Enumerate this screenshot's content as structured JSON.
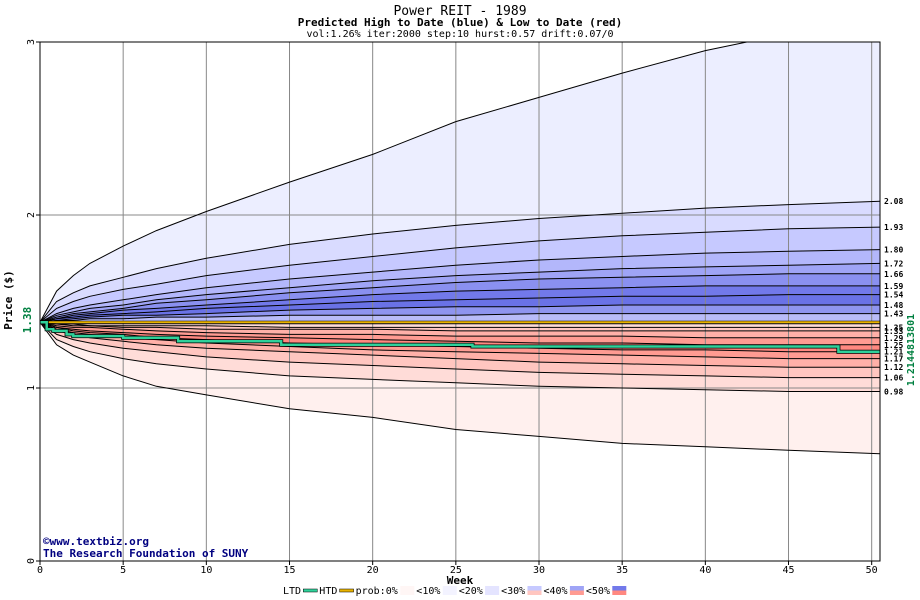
{
  "chart_data": {
    "type": "area",
    "title": "Power REIT - 1989",
    "subtitle": "Predicted High to Date (blue) &  Low to Date (red)",
    "params": "vol:1.26% iter:2000 step:10 hurst:0.57 drift:0.07/0",
    "xlabel": "Week",
    "ylabel": "Price ($)",
    "xlim": [
      0,
      50.5
    ],
    "ylim": [
      0,
      3
    ],
    "x_ticks": [
      "0",
      "5",
      "10",
      "15",
      "20",
      "25",
      "30",
      "35",
      "40",
      "45",
      "50"
    ],
    "y_ticks": [
      "0",
      "1",
      "2",
      "3"
    ],
    "current_price_label": "1.38",
    "current_price": 1.38,
    "last_price_label": "1.2144813801",
    "credit_line1": "©www.textbiz.org",
    "credit_line2": "The Research Foundation of SUNY",
    "x": [
      0,
      1,
      2,
      3,
      5,
      7,
      10,
      15,
      20,
      25,
      30,
      35,
      40,
      45,
      50.5
    ],
    "high_bands": [
      {
        "label": "2.08",
        "values": [
          1.38,
          1.5,
          1.55,
          1.59,
          1.64,
          1.69,
          1.75,
          1.83,
          1.89,
          1.94,
          1.98,
          2.01,
          2.04,
          2.06,
          2.08
        ]
      },
      {
        "label": "1.93",
        "values": [
          1.38,
          1.46,
          1.5,
          1.53,
          1.57,
          1.6,
          1.65,
          1.71,
          1.76,
          1.81,
          1.85,
          1.88,
          1.9,
          1.92,
          1.93
        ]
      },
      {
        "label": "1.80",
        "values": [
          1.38,
          1.43,
          1.46,
          1.48,
          1.51,
          1.54,
          1.58,
          1.63,
          1.67,
          1.71,
          1.74,
          1.76,
          1.78,
          1.79,
          1.8
        ]
      },
      {
        "label": "1.72",
        "values": [
          1.38,
          1.42,
          1.44,
          1.46,
          1.48,
          1.51,
          1.54,
          1.58,
          1.62,
          1.65,
          1.67,
          1.69,
          1.7,
          1.71,
          1.72
        ]
      },
      {
        "label": "1.66",
        "values": [
          1.38,
          1.41,
          1.43,
          1.44,
          1.46,
          1.49,
          1.51,
          1.55,
          1.58,
          1.61,
          1.63,
          1.64,
          1.65,
          1.66,
          1.66
        ]
      },
      {
        "label": "1.59",
        "values": [
          1.38,
          1.4,
          1.42,
          1.43,
          1.45,
          1.46,
          1.48,
          1.51,
          1.54,
          1.56,
          1.57,
          1.58,
          1.59,
          1.59,
          1.59
        ]
      },
      {
        "label": "1.54",
        "values": [
          1.38,
          1.4,
          1.41,
          1.42,
          1.43,
          1.44,
          1.46,
          1.48,
          1.5,
          1.51,
          1.52,
          1.53,
          1.53,
          1.54,
          1.54
        ]
      },
      {
        "label": "1.48",
        "values": [
          1.38,
          1.39,
          1.4,
          1.41,
          1.42,
          1.42,
          1.43,
          1.45,
          1.46,
          1.47,
          1.47,
          1.48,
          1.48,
          1.48,
          1.48
        ]
      },
      {
        "label": "1.43",
        "values": [
          1.38,
          1.39,
          1.39,
          1.4,
          1.4,
          1.41,
          1.41,
          1.42,
          1.42,
          1.42,
          1.43,
          1.43,
          1.43,
          1.43,
          1.43
        ]
      }
    ],
    "low_bands": [
      {
        "label": "1.35",
        "values": [
          1.38,
          1.37,
          1.37,
          1.36,
          1.36,
          1.36,
          1.36,
          1.35,
          1.35,
          1.35,
          1.35,
          1.35,
          1.35,
          1.35,
          1.35
        ]
      },
      {
        "label": "1.33",
        "values": [
          1.38,
          1.37,
          1.36,
          1.36,
          1.35,
          1.35,
          1.34,
          1.34,
          1.34,
          1.33,
          1.33,
          1.33,
          1.33,
          1.33,
          1.33
        ]
      },
      {
        "label": "1.29",
        "values": [
          1.38,
          1.36,
          1.35,
          1.35,
          1.34,
          1.33,
          1.32,
          1.31,
          1.31,
          1.3,
          1.3,
          1.3,
          1.29,
          1.29,
          1.29
        ]
      },
      {
        "label": "1.25",
        "values": [
          1.38,
          1.35,
          1.34,
          1.33,
          1.32,
          1.31,
          1.3,
          1.29,
          1.28,
          1.27,
          1.26,
          1.26,
          1.25,
          1.25,
          1.25
        ]
      },
      {
        "label": "1.21",
        "values": [
          1.38,
          1.35,
          1.33,
          1.32,
          1.31,
          1.29,
          1.28,
          1.26,
          1.25,
          1.24,
          1.23,
          1.22,
          1.22,
          1.21,
          1.21
        ]
      },
      {
        "label": "1.17",
        "values": [
          1.38,
          1.34,
          1.32,
          1.31,
          1.29,
          1.28,
          1.26,
          1.24,
          1.22,
          1.21,
          1.2,
          1.19,
          1.18,
          1.17,
          1.17
        ]
      },
      {
        "label": "1.12",
        "values": [
          1.38,
          1.33,
          1.31,
          1.29,
          1.27,
          1.25,
          1.23,
          1.21,
          1.19,
          1.17,
          1.15,
          1.14,
          1.13,
          1.12,
          1.12
        ]
      },
      {
        "label": "1.06",
        "values": [
          1.38,
          1.31,
          1.28,
          1.26,
          1.23,
          1.21,
          1.18,
          1.15,
          1.13,
          1.11,
          1.09,
          1.08,
          1.07,
          1.06,
          1.06
        ]
      },
      {
        "label": "0.98",
        "values": [
          1.38,
          1.28,
          1.24,
          1.21,
          1.17,
          1.14,
          1.11,
          1.07,
          1.05,
          1.03,
          1.01,
          1.0,
          0.99,
          0.98,
          0.98
        ]
      }
    ],
    "outer_high": [
      1.38,
      1.56,
      1.65,
      1.72,
      1.82,
      1.91,
      2.02,
      2.19,
      2.35,
      2.54,
      2.68,
      2.82,
      2.95,
      3.05,
      3.15
    ],
    "outer_low": [
      1.38,
      1.25,
      1.19,
      1.15,
      1.07,
      1.01,
      0.96,
      0.88,
      0.83,
      0.76,
      0.72,
      0.68,
      0.66,
      0.64,
      0.62
    ],
    "price_path": {
      "x": [
        0,
        0.4,
        0.8,
        1.2,
        1.6,
        2.0,
        3.0,
        4.0,
        5.0,
        6.0,
        7.0,
        8.0,
        8.3,
        9.5,
        10.5,
        11.5,
        12.5,
        14.0,
        14.5,
        16,
        18,
        20,
        22,
        24,
        26,
        28,
        30,
        32,
        34,
        36,
        38,
        40,
        42,
        44,
        46,
        47.5,
        48,
        50,
        50.5
      ],
      "y": [
        1.38,
        1.34,
        1.33,
        1.33,
        1.31,
        1.3,
        1.3,
        1.3,
        1.29,
        1.29,
        1.29,
        1.29,
        1.27,
        1.27,
        1.27,
        1.27,
        1.27,
        1.27,
        1.25,
        1.25,
        1.25,
        1.25,
        1.25,
        1.25,
        1.24,
        1.24,
        1.24,
        1.24,
        1.24,
        1.24,
        1.24,
        1.24,
        1.24,
        1.24,
        1.24,
        1.24,
        1.21,
        1.21,
        1.21
      ]
    },
    "legend": {
      "ltd": "LTD",
      "htd": "HTD",
      "prob_label": "prob:0%",
      "items": [
        "<10%",
        "<20%",
        "<30%",
        "<40%",
        "<50%"
      ]
    },
    "colors": {
      "high_fills": [
        "#eceeff",
        "#d9dbff",
        "#c6c9ff",
        "#b3b7fb",
        "#9fa4f6",
        "#8a90f0",
        "#7279ea",
        "#6a72e6",
        "#8f95ef",
        "#b9bcf8"
      ],
      "low_fills": [
        "#fff0ee",
        "#ffdcd8",
        "#ffc6c0",
        "#ffb0a8",
        "#ff9b92",
        "#ff8880",
        "#ff9b92",
        "#ffb0a8",
        "#ffc6c0",
        "#ffdcd8"
      ],
      "price_line": "#2fd19a",
      "current_line": "#e9b300",
      "grid": "#888888",
      "text_blue": "#000080",
      "price_label_green": "#008040"
    }
  }
}
